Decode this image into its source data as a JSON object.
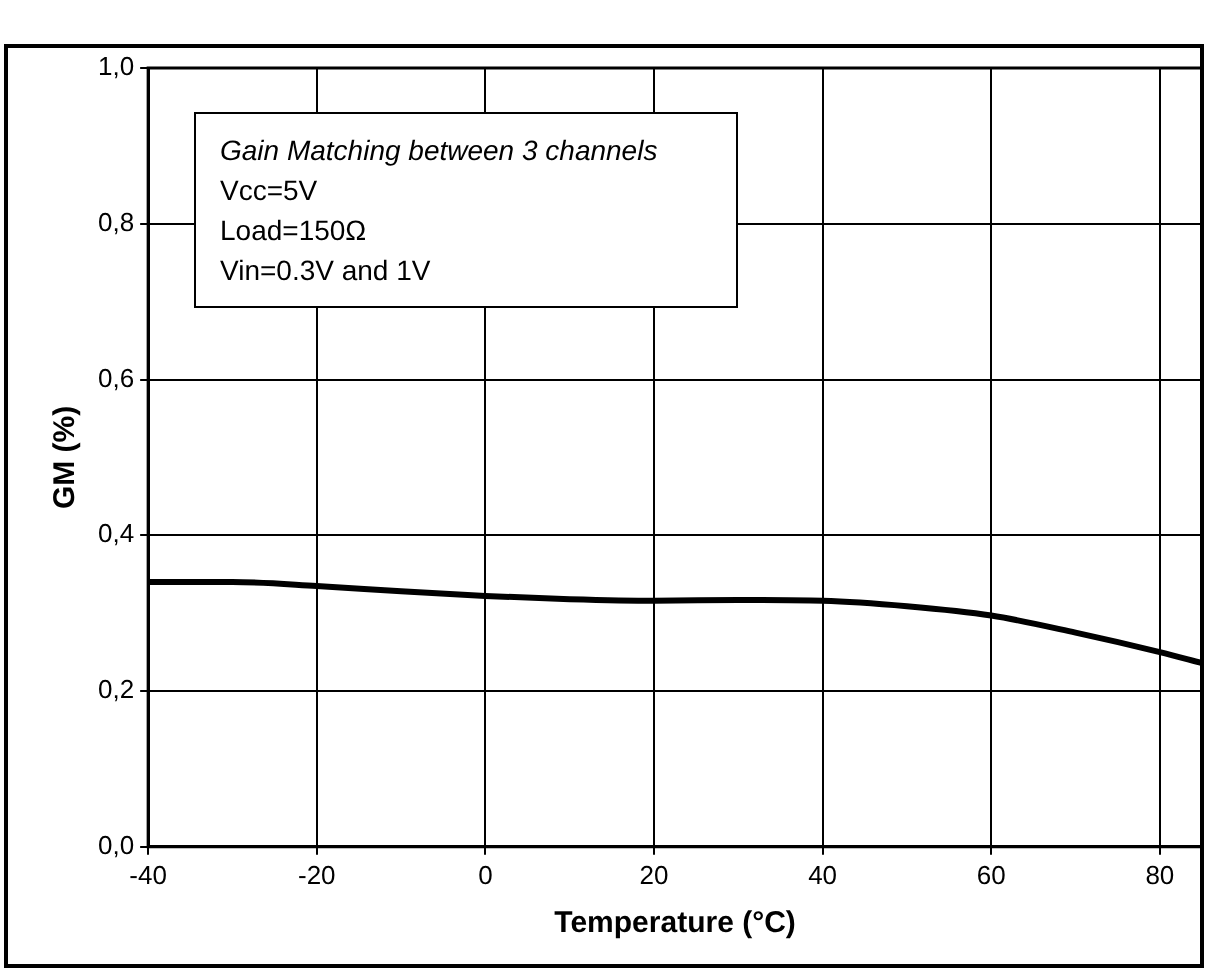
{
  "chart_data": {
    "type": "line",
    "xlabel": "Temperature (°C)",
    "ylabel": "GM (%)",
    "x": [
      -40,
      -30,
      -20,
      -10,
      0,
      10,
      20,
      30,
      40,
      50,
      60,
      70,
      80,
      85
    ],
    "series": [
      {
        "color": "#000000",
        "values": [
          0.34,
          0.34,
          0.335,
          0.328,
          0.322,
          0.318,
          0.316,
          0.317,
          0.316,
          0.309,
          0.297,
          0.275,
          0.25,
          0.236
        ]
      }
    ],
    "xlim": [
      -40,
      85
    ],
    "xticks": [
      -40,
      -20,
      0,
      20,
      40,
      60,
      80
    ],
    "ylim": [
      0,
      1
    ],
    "yticks": [
      {
        "value": 0,
        "label": "0,0"
      },
      {
        "value": 0.2,
        "label": "0,2"
      },
      {
        "value": 0.4,
        "label": "0,4"
      },
      {
        "value": 0.6,
        "label": "0,6"
      },
      {
        "value": 0.8,
        "label": "0,8"
      },
      {
        "value": 1,
        "label": "1,0"
      }
    ],
    "grid": true,
    "legend": false,
    "marker": "none",
    "line_style": "solid",
    "annotations": [
      "Gain Matching between 3 channels",
      "Vcc=5V",
      "Load=150Ω",
      "Vin=0.3V and 1V"
    ]
  }
}
